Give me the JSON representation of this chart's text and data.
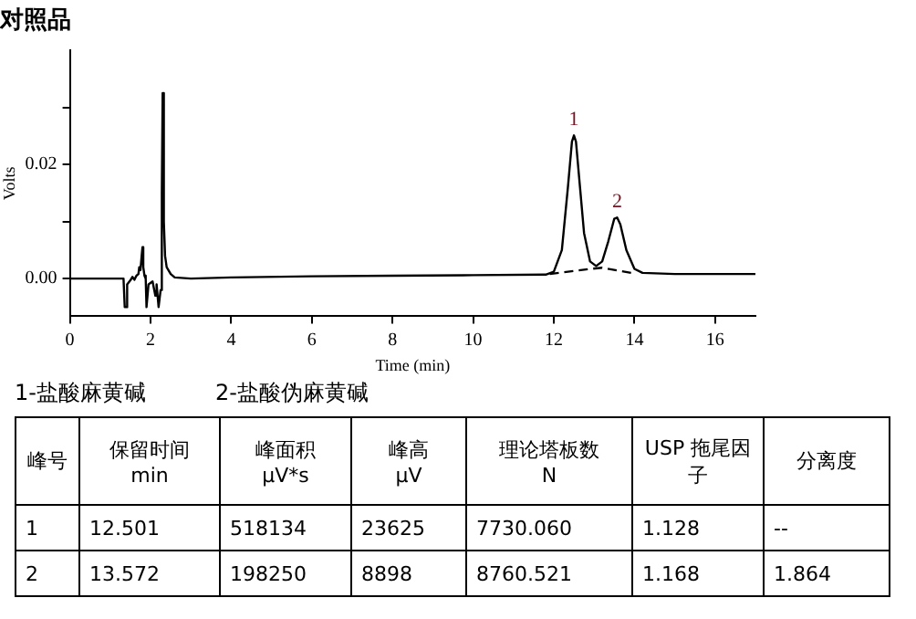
{
  "chart_data": {
    "type": "line",
    "title": "对照品",
    "xlabel": "Time (min)",
    "ylabel": "Volts",
    "xlim": [
      0,
      17
    ],
    "xticks": [
      0,
      2,
      4,
      6,
      8,
      10,
      12,
      14,
      16
    ],
    "ylim": [
      -0.0066,
      0.04
    ],
    "yticks": [
      {
        "value": 0,
        "label": "0.00"
      },
      {
        "value": 0.01,
        "label": null
      },
      {
        "value": 0.02,
        "label": "0.02"
      },
      {
        "value": 0.03,
        "label": null
      }
    ],
    "grid": false,
    "legend": false,
    "marker": "none",
    "series": [
      {
        "color": "#000000",
        "line_style": "solid",
        "x": [
          0,
          1.33,
          1.36,
          1.4,
          1.42,
          1.5,
          1.55,
          1.6,
          1.65,
          1.7,
          1.72,
          1.75,
          1.78,
          1.8,
          1.82,
          1.85,
          1.88,
          1.9,
          1.95,
          2.05,
          2.12,
          2.15,
          2.2,
          2.25,
          2.28,
          2.3,
          2.33,
          2.36,
          2.4,
          2.5,
          2.6,
          3,
          4,
          6,
          8,
          10,
          11.8,
          12,
          12.2,
          12.35,
          12.45,
          12.5,
          12.55,
          12.65,
          12.75,
          12.9,
          13.05,
          13.2,
          13.35,
          13.5,
          13.57,
          13.65,
          13.8,
          14,
          14.2,
          15,
          17
        ],
        "values": [
          0,
          0,
          -0.005,
          -0.005,
          -0.001,
          -0.0003,
          0.0003,
          -0.0002,
          0.0005,
          0.0008,
          0.002,
          0.0015,
          0.004,
          0.0055,
          0.002,
          0.0005,
          0,
          -0.005,
          -0.001,
          -0.0005,
          -0.003,
          -0.001,
          -0.005,
          -0.002,
          0.015,
          0.0325,
          0.01,
          0.004,
          0.002,
          0.0008,
          0.0002,
          0,
          0.0002,
          0.0004,
          0.0005,
          0.0006,
          0.0007,
          0.0012,
          0.005,
          0.016,
          0.024,
          0.0251,
          0.024,
          0.016,
          0.008,
          0.003,
          0.0022,
          0.003,
          0.0065,
          0.0105,
          0.0107,
          0.0095,
          0.005,
          0.0017,
          0.001,
          0.0008,
          0.0008
        ]
      },
      {
        "color": "#000000",
        "line_style": "dashed",
        "x": [
          11.9,
          12.9,
          13.2,
          14
        ],
        "values": [
          0.0008,
          0.0017,
          0.0019,
          0.0009
        ]
      }
    ],
    "annotations": [
      {
        "text": "1",
        "x": 12.5,
        "y": 0.0251
      },
      {
        "text": "2",
        "x": 13.57,
        "y": 0.0107
      },
      "1-盐酸麻黄碱",
      "2-盐酸伪麻黄碱",
      "峰号",
      "保留时间\nmin",
      "峰面积\nμV*s",
      "峰高\nμV",
      "理论塔板数\nN",
      "USP 拖尾因子",
      "分离度",
      "1",
      "12.501",
      "518134",
      "23625",
      "7730.060",
      "1.128",
      "--",
      "2",
      "13.572",
      "198250",
      "8898",
      "8760.521",
      "1.168",
      "1.864"
    ]
  }
}
